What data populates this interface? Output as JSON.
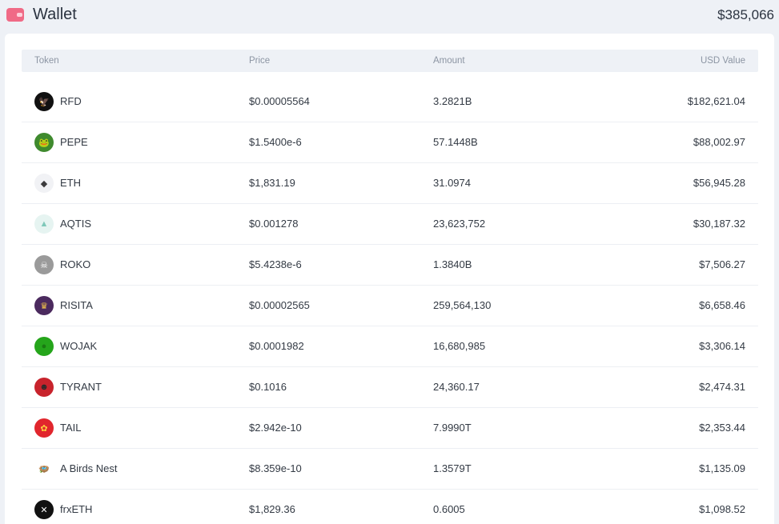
{
  "header": {
    "title": "Wallet",
    "total": "$385,066"
  },
  "table": {
    "columns": [
      "Token",
      "Price",
      "Amount",
      "USD Value"
    ],
    "rows": [
      {
        "token": "RFD",
        "price": "$0.00005564",
        "amount": "3.2821B",
        "usd": "$182,621.04",
        "icon": "rfd-logo-icon",
        "logo_bg": "#111111",
        "logo_glyph": "🦅",
        "logo_color": "#ffffff"
      },
      {
        "token": "PEPE",
        "price": "$1.5400e-6",
        "amount": "57.1448B",
        "usd": "$88,002.97",
        "icon": "pepe-logo-icon",
        "logo_bg": "#3f8a2e",
        "logo_glyph": "🐸",
        "logo_color": "#ffffff"
      },
      {
        "token": "ETH",
        "price": "$1,831.19",
        "amount": "31.0974",
        "usd": "$56,945.28",
        "icon": "eth-logo-icon",
        "logo_bg": "#f1f2f5",
        "logo_glyph": "◆",
        "logo_color": "#3c3c3d"
      },
      {
        "token": "AQTIS",
        "price": "$0.001278",
        "amount": "23,623,752",
        "usd": "$30,187.32",
        "icon": "aqtis-logo-icon",
        "logo_bg": "#e6f4f1",
        "logo_glyph": "▲",
        "logo_color": "#7fc8b9"
      },
      {
        "token": "ROKO",
        "price": "$5.4238e-6",
        "amount": "1.3840B",
        "usd": "$7,506.27",
        "icon": "roko-logo-icon",
        "logo_bg": "#9a9a9a",
        "logo_glyph": "☠",
        "logo_color": "#ffffff"
      },
      {
        "token": "RISITA",
        "price": "$0.00002565",
        "amount": "259,564,130",
        "usd": "$6,658.46",
        "icon": "risita-logo-icon",
        "logo_bg": "#4b2a5e",
        "logo_glyph": "♛",
        "logo_color": "#f3c44b"
      },
      {
        "token": "WOJAK",
        "price": "$0.0001982",
        "amount": "16,680,985",
        "usd": "$3,306.14",
        "icon": "wojak-logo-icon",
        "logo_bg": "#25a51b",
        "logo_glyph": "●",
        "logo_color": "#1a7a12"
      },
      {
        "token": "TYRANT",
        "price": "$0.1016",
        "amount": "24,360.17",
        "usd": "$2,474.31",
        "icon": "tyrant-logo-icon",
        "logo_bg": "#c8232c",
        "logo_glyph": "☻",
        "logo_color": "#2a2a2a"
      },
      {
        "token": "TAIL",
        "price": "$2.942e-10",
        "amount": "7.9990T",
        "usd": "$2,353.44",
        "icon": "tail-logo-icon",
        "logo_bg": "#e1262d",
        "logo_glyph": "✿",
        "logo_color": "#ffd23f"
      },
      {
        "token": "A Birds Nest",
        "price": "$8.359e-10",
        "amount": "1.3579T",
        "usd": "$1,135.09",
        "icon": "birds-nest-logo-icon",
        "logo_bg": "#ffffff",
        "logo_glyph": "🪺",
        "logo_color": "#d4a017"
      },
      {
        "token": "frxETH",
        "price": "$1,829.36",
        "amount": "0.6005",
        "usd": "$1,098.52",
        "icon": "frxeth-logo-icon",
        "logo_bg": "#111111",
        "logo_glyph": "✕",
        "logo_color": "#ffffff"
      }
    ]
  }
}
